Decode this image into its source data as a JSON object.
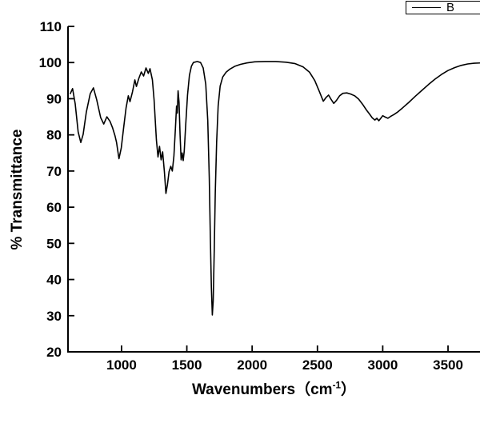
{
  "chart_data": {
    "type": "line",
    "title": "",
    "ylabel": "% Transmittance",
    "xlabel_prefix": "Wavenumbers（cm",
    "xlabel_sup": "-1",
    "xlabel_suffix": "）",
    "xlim": [
      590,
      3800
    ],
    "ylim": [
      20,
      110
    ],
    "x_ticks": [
      1000,
      1500,
      2000,
      2500,
      3000,
      3500
    ],
    "y_ticks": [
      20,
      30,
      40,
      50,
      60,
      70,
      80,
      90,
      100,
      110
    ],
    "grid": false,
    "legend": {
      "label": "B",
      "position": "top-right-cropped"
    },
    "line_color": "#000000",
    "axis_color": "#000000",
    "series": [
      {
        "name": "B",
        "color": "#000000",
        "points": [
          [
            608,
            91.4
          ],
          [
            625,
            92.8
          ],
          [
            645,
            88.6
          ],
          [
            668,
            80.8
          ],
          [
            688,
            77.9
          ],
          [
            706,
            80.1
          ],
          [
            730,
            86.3
          ],
          [
            760,
            91.4
          ],
          [
            785,
            93.0
          ],
          [
            810,
            89.7
          ],
          [
            840,
            84.8
          ],
          [
            864,
            83.0
          ],
          [
            888,
            85.0
          ],
          [
            912,
            83.7
          ],
          [
            932,
            81.9
          ],
          [
            950,
            79.7
          ],
          [
            962,
            77.9
          ],
          [
            980,
            73.4
          ],
          [
            998,
            76.4
          ],
          [
            1016,
            81.9
          ],
          [
            1035,
            87.5
          ],
          [
            1052,
            90.8
          ],
          [
            1065,
            89.2
          ],
          [
            1084,
            91.9
          ],
          [
            1102,
            95.2
          ],
          [
            1114,
            93.4
          ],
          [
            1132,
            95.6
          ],
          [
            1151,
            97.4
          ],
          [
            1169,
            96.3
          ],
          [
            1187,
            98.5
          ],
          [
            1205,
            97.0
          ],
          [
            1218,
            98.3
          ],
          [
            1236,
            95.2
          ],
          [
            1249,
            89.7
          ],
          [
            1261,
            82.4
          ],
          [
            1267,
            78.6
          ],
          [
            1279,
            73.9
          ],
          [
            1291,
            76.8
          ],
          [
            1303,
            73.1
          ],
          [
            1315,
            75.3
          ],
          [
            1328,
            69.8
          ],
          [
            1340,
            63.8
          ],
          [
            1352,
            66.4
          ],
          [
            1364,
            69.8
          ],
          [
            1377,
            71.3
          ],
          [
            1389,
            70.0
          ],
          [
            1401,
            74.2
          ],
          [
            1413,
            81.9
          ],
          [
            1421,
            88.0
          ],
          [
            1427,
            86.0
          ],
          [
            1433,
            92.2
          ],
          [
            1440,
            89.0
          ],
          [
            1448,
            80.0
          ],
          [
            1456,
            73.1
          ],
          [
            1464,
            75.0
          ],
          [
            1472,
            72.9
          ],
          [
            1480,
            75.5
          ],
          [
            1492,
            83.0
          ],
          [
            1505,
            91.0
          ],
          [
            1520,
            96.5
          ],
          [
            1535,
            99.0
          ],
          [
            1550,
            100.0
          ],
          [
            1580,
            100.3
          ],
          [
            1605,
            100.0
          ],
          [
            1625,
            98.5
          ],
          [
            1645,
            94.0
          ],
          [
            1660,
            84.0
          ],
          [
            1672,
            68.0
          ],
          [
            1680,
            52.0
          ],
          [
            1688,
            38.0
          ],
          [
            1695,
            30.2
          ],
          [
            1702,
            34.0
          ],
          [
            1710,
            48.0
          ],
          [
            1718,
            64.0
          ],
          [
            1728,
            78.0
          ],
          [
            1740,
            88.0
          ],
          [
            1755,
            93.5
          ],
          [
            1775,
            96.0
          ],
          [
            1800,
            97.3
          ],
          [
            1830,
            98.2
          ],
          [
            1870,
            99.0
          ],
          [
            1910,
            99.5
          ],
          [
            1960,
            99.9
          ],
          [
            2020,
            100.2
          ],
          [
            2100,
            100.3
          ],
          [
            2180,
            100.3
          ],
          [
            2260,
            100.1
          ],
          [
            2330,
            99.7
          ],
          [
            2390,
            98.8
          ],
          [
            2440,
            97.3
          ],
          [
            2480,
            95.0
          ],
          [
            2515,
            92.0
          ],
          [
            2545,
            89.3
          ],
          [
            2565,
            90.3
          ],
          [
            2585,
            91.0
          ],
          [
            2605,
            89.8
          ],
          [
            2625,
            88.7
          ],
          [
            2645,
            89.5
          ],
          [
            2670,
            90.8
          ],
          [
            2695,
            91.5
          ],
          [
            2725,
            91.6
          ],
          [
            2755,
            91.3
          ],
          [
            2785,
            90.8
          ],
          [
            2815,
            89.9
          ],
          [
            2845,
            88.5
          ],
          [
            2875,
            86.9
          ],
          [
            2900,
            85.7
          ],
          [
            2920,
            84.7
          ],
          [
            2940,
            84.1
          ],
          [
            2955,
            84.6
          ],
          [
            2970,
            83.9
          ],
          [
            2985,
            84.6
          ],
          [
            3000,
            85.3
          ],
          [
            3020,
            84.9
          ],
          [
            3040,
            84.6
          ],
          [
            3060,
            85.1
          ],
          [
            3085,
            85.6
          ],
          [
            3110,
            86.2
          ],
          [
            3150,
            87.4
          ],
          [
            3200,
            89.0
          ],
          [
            3250,
            90.7
          ],
          [
            3300,
            92.3
          ],
          [
            3350,
            93.9
          ],
          [
            3400,
            95.4
          ],
          [
            3450,
            96.7
          ],
          [
            3500,
            97.8
          ],
          [
            3550,
            98.6
          ],
          [
            3600,
            99.2
          ],
          [
            3650,
            99.6
          ],
          [
            3700,
            99.8
          ],
          [
            3750,
            99.9
          ],
          [
            3800,
            100.0
          ]
        ]
      }
    ]
  }
}
